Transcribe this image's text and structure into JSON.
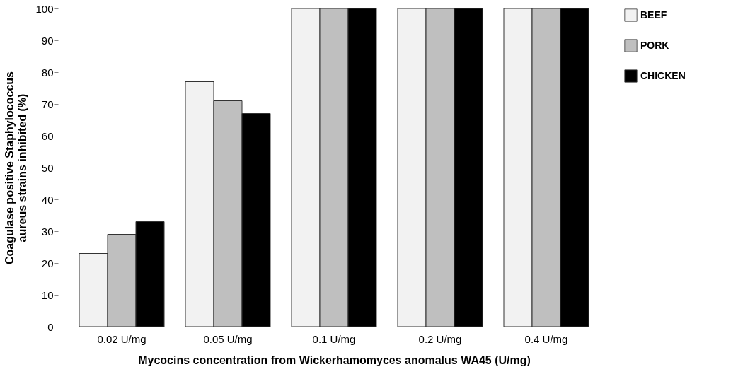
{
  "chart_data": {
    "type": "bar",
    "xlabel": "Mycocins concentration from Wickerhamomyces anomalus WA45 (U/mg)",
    "ylabel": [
      "Coagulase positive Staphylococcus",
      "aureus strains inhibited (%)"
    ],
    "categories": [
      "0.02 U/mg",
      "0.05 U/mg",
      "0.1 U/mg",
      "0.2 U/mg",
      "0.4 U/mg"
    ],
    "series": [
      {
        "name": "BEEF",
        "color": "#f2f2f2",
        "values": [
          23,
          77,
          100,
          100,
          100
        ]
      },
      {
        "name": "PORK",
        "color": "#bfbfbf",
        "values": [
          29,
          71,
          100,
          100,
          100
        ]
      },
      {
        "name": "CHICKEN",
        "color": "#000000",
        "values": [
          33,
          67,
          100,
          100,
          100
        ]
      }
    ],
    "ylim": [
      0,
      100
    ],
    "yticks": [
      0,
      10,
      20,
      30,
      40,
      50,
      60,
      70,
      80,
      90,
      100
    ],
    "grid": false,
    "legend": "right"
  }
}
